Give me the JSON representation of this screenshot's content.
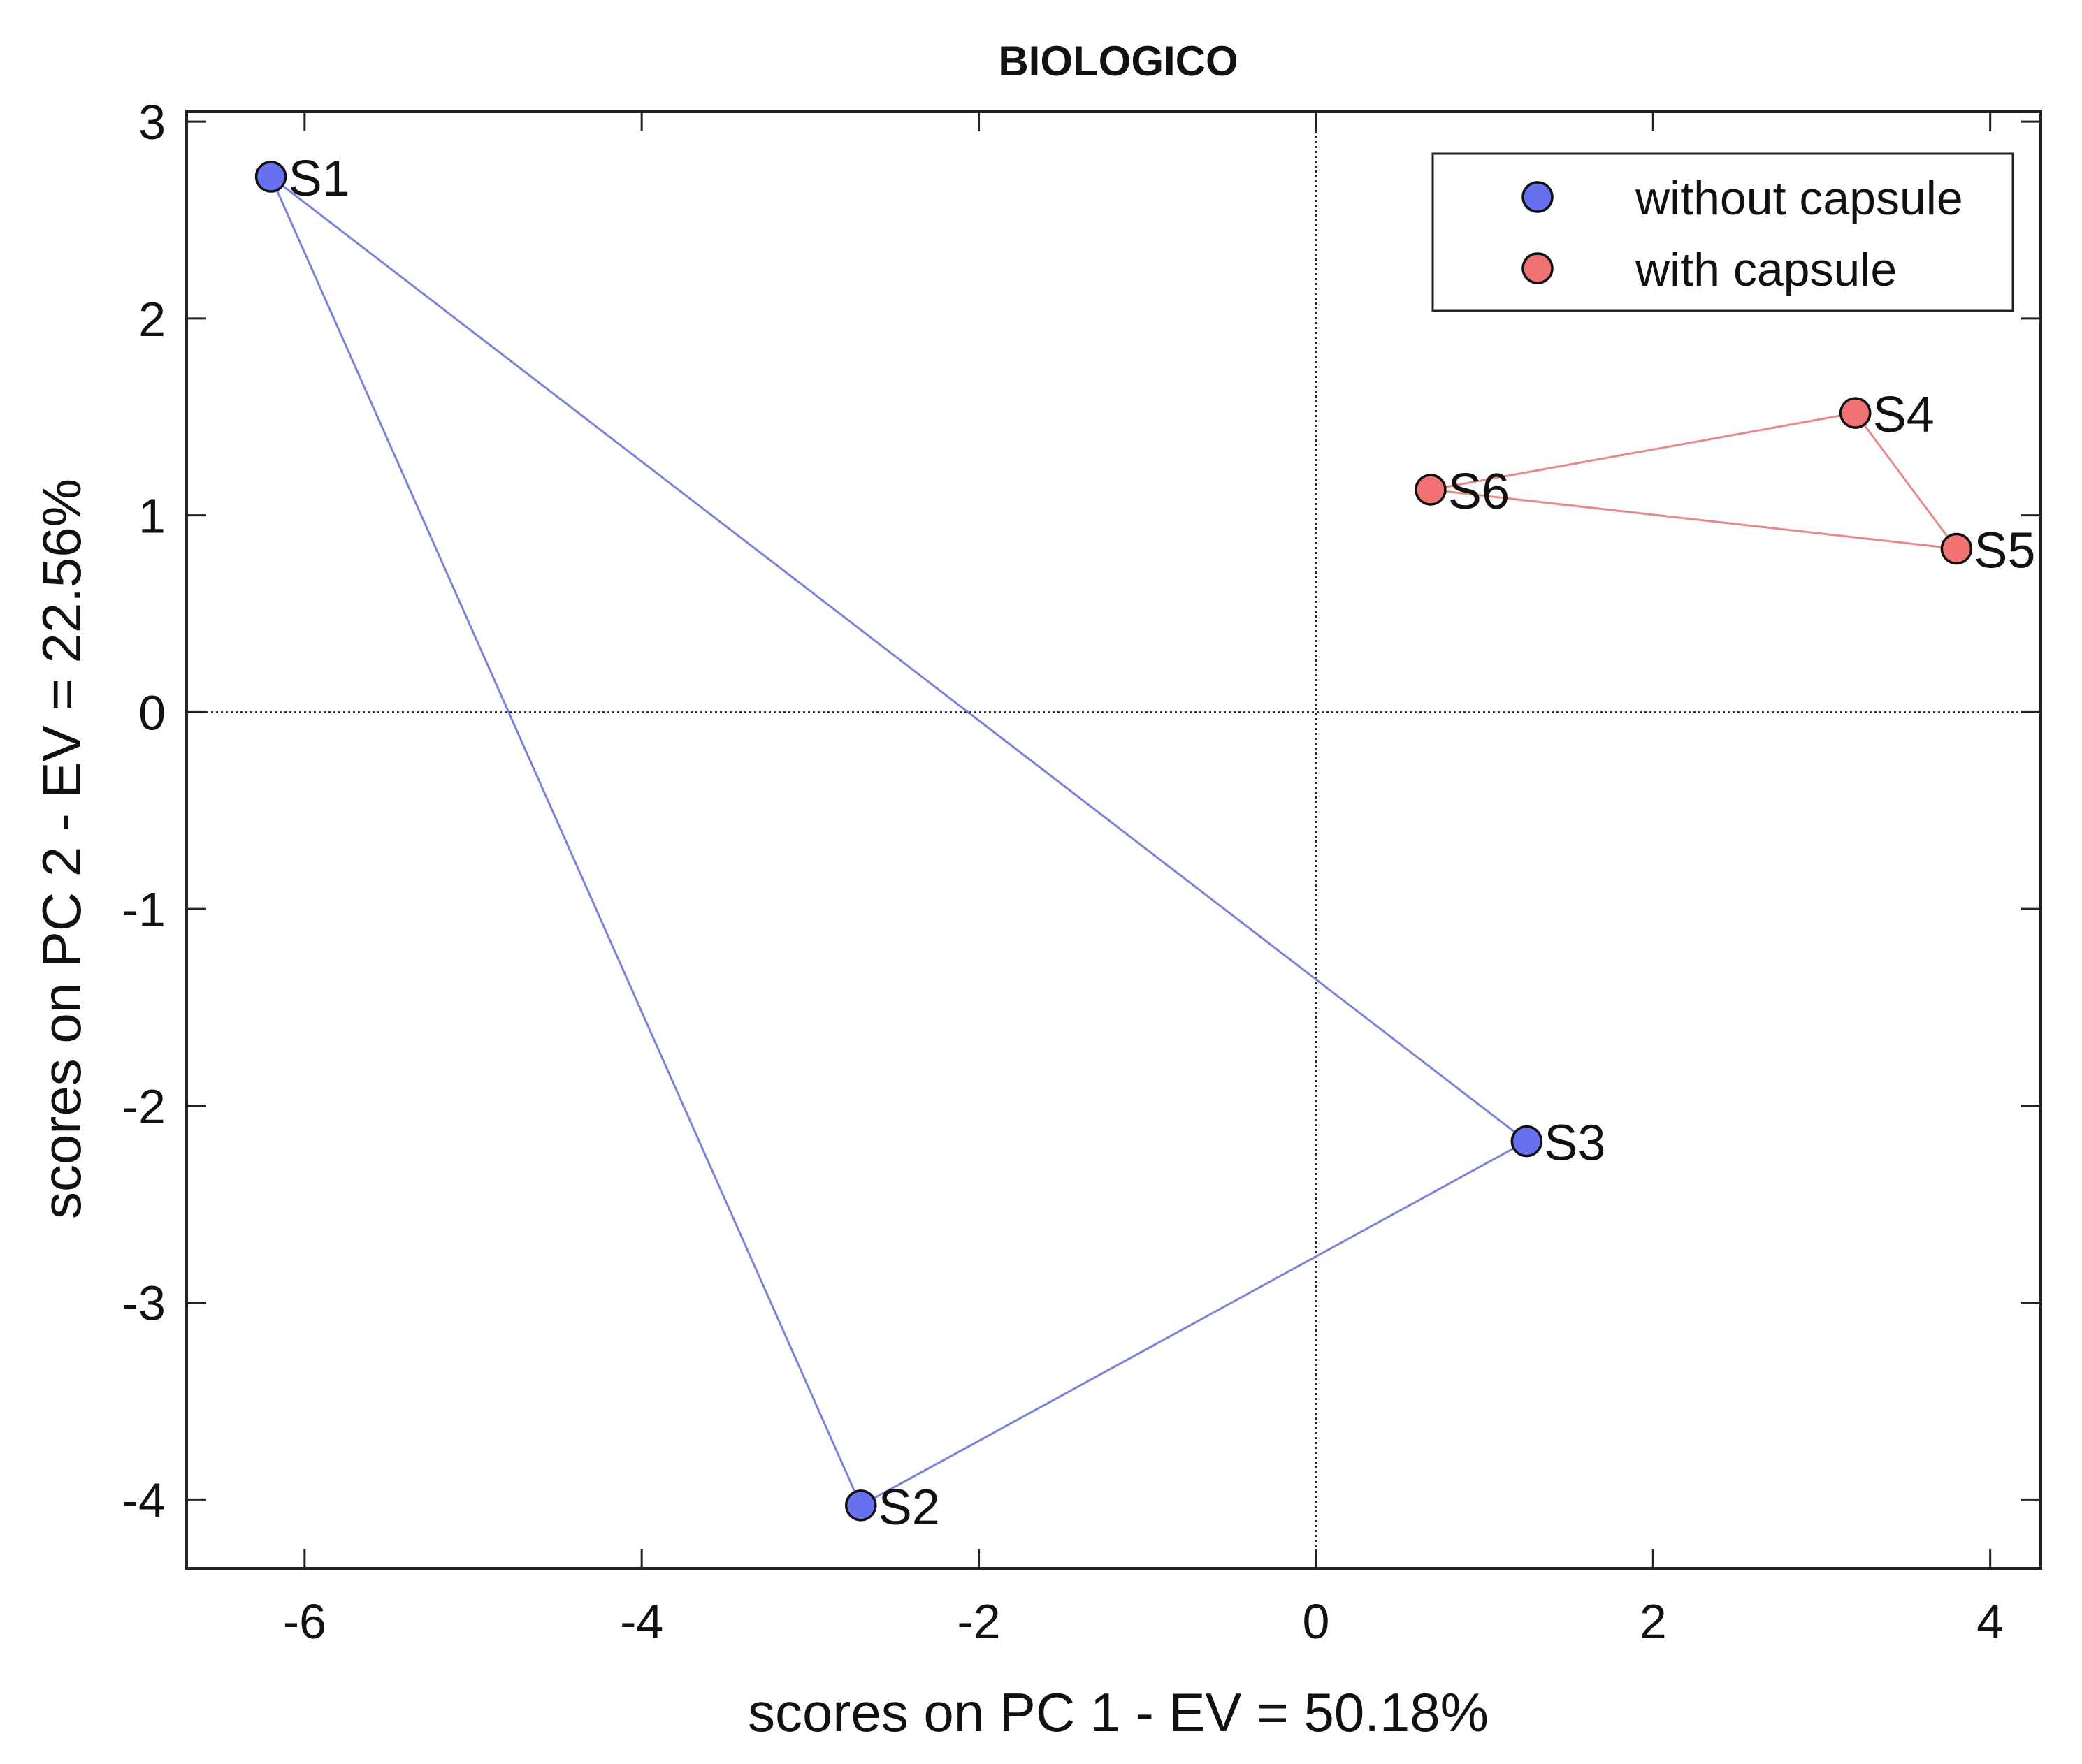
{
  "chart_data": {
    "type": "scatter",
    "title": "BIOLOGICO",
    "xlabel": "scores on PC 1 - EV = 50.18%",
    "ylabel": "scores on PC 2 - EV = 22.56%",
    "xlim": [
      -6.7,
      4.3
    ],
    "ylim": [
      -4.35,
      3.05
    ],
    "xticks": [
      -6,
      -4,
      -2,
      0,
      2,
      4
    ],
    "yticks": [
      -4,
      -3,
      -2,
      -1,
      0,
      1,
      2,
      3
    ],
    "xtick_labels": [
      "-6",
      "-4",
      "-2",
      "0",
      "2",
      "4"
    ],
    "ytick_labels": [
      "-4",
      "-3",
      "-2",
      "-1",
      "0",
      "1",
      "2",
      "3"
    ],
    "grid": false,
    "zero_lines": true,
    "legend_position": "top-right",
    "series": [
      {
        "name": "without capsule",
        "color": "#6670f0",
        "line_color": "#7b83d9",
        "hull_order": [
          "S1",
          "S3",
          "S2"
        ],
        "points": [
          {
            "label": "S1",
            "x": -6.2,
            "y": 2.72
          },
          {
            "label": "S2",
            "x": -2.7,
            "y": -4.03
          },
          {
            "label": "S3",
            "x": 1.25,
            "y": -2.18
          }
        ]
      },
      {
        "name": "with capsule",
        "color": "#f07272",
        "line_color": "#e88a8a",
        "hull_order": [
          "S4",
          "S5",
          "S6"
        ],
        "points": [
          {
            "label": "S4",
            "x": 3.2,
            "y": 1.52
          },
          {
            "label": "S5",
            "x": 3.8,
            "y": 0.83
          },
          {
            "label": "S6",
            "x": 0.68,
            "y": 1.13
          }
        ]
      }
    ]
  }
}
